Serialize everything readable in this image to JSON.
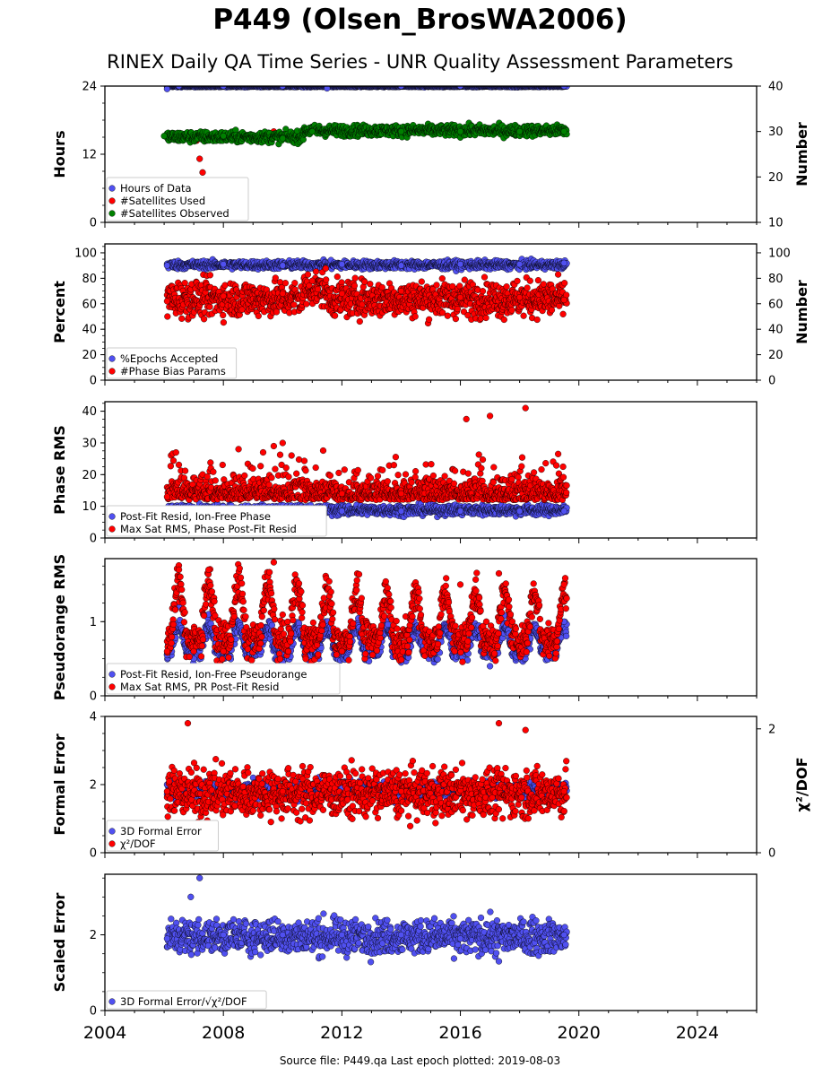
{
  "title": "P449 (Olsen_BrosWA2006)",
  "subtitle": "RINEX Daily QA Time Series - UNR Quality Assessment Parameters",
  "footer": "Source file: P449.qa Last epoch plotted: 2019-08-03",
  "colors": {
    "blue": "#5050f0",
    "red": "#ff0000",
    "green": "#008000",
    "edge": "#000000"
  },
  "chart_data": [
    {
      "type": "scatter",
      "id": "hours",
      "ylabel": "Hours",
      "y2label": "Number",
      "ylim": [
        0,
        24
      ],
      "yticks": [
        "0",
        "12",
        "24"
      ],
      "y2lim": [
        10,
        40
      ],
      "y2ticks": [
        "10",
        "20",
        "30",
        "40"
      ],
      "legend": "lower-left",
      "series": [
        {
          "name": "Hours of Data",
          "color": "blue",
          "axis": "left",
          "values": [
            [
              2006.1,
              23.5
            ],
            [
              2006.5,
              24
            ],
            [
              2008.0,
              24
            ],
            [
              2010.0,
              24
            ],
            [
              2011.5,
              23.6
            ],
            [
              2014.0,
              24
            ],
            [
              2016.0,
              24
            ],
            [
              2019.5,
              24
            ]
          ]
        },
        {
          "name": "#Satellites Used",
          "color": "red",
          "axis": "right",
          "values": [
            [
              2007.2,
              24
            ],
            [
              2007.1,
              28
            ],
            [
              2009.7,
              30
            ],
            [
              2007.3,
              21
            ]
          ]
        },
        {
          "name": "#Satellites Observed",
          "color": "green",
          "axis": "right",
          "values": [
            [
              2006.0,
              29
            ],
            [
              2008.0,
              29
            ],
            [
              2010.0,
              28.5
            ],
            [
              2011.0,
              30
            ],
            [
              2014.0,
              30
            ],
            [
              2016.0,
              30
            ],
            [
              2018.0,
              30
            ],
            [
              2019.5,
              30
            ]
          ]
        }
      ]
    },
    {
      "type": "scatter",
      "id": "percent",
      "ylabel": "Percent",
      "y2label": "Number",
      "ylim": [
        0,
        107
      ],
      "yticks": [
        "0",
        "20",
        "40",
        "60",
        "80",
        "100"
      ],
      "y2lim": [
        0,
        107
      ],
      "y2ticks": [
        "0",
        "20",
        "40",
        "60",
        "80",
        "100"
      ],
      "legend": "lower-left",
      "series": [
        {
          "name": "%Epochs Accepted",
          "color": "blue",
          "values": [
            [
              2006.1,
              90
            ],
            [
              2008.0,
              91
            ],
            [
              2010.0,
              90
            ],
            [
              2012.0,
              91
            ],
            [
              2014.0,
              90
            ],
            [
              2016.0,
              91
            ],
            [
              2018.0,
              91
            ],
            [
              2019.5,
              92
            ]
          ]
        },
        {
          "name": "#Phase Bias Params",
          "color": "red",
          "values": [
            [
              2006.1,
              62
            ],
            [
              2007.2,
              23
            ],
            [
              2008.0,
              66
            ],
            [
              2010.0,
              68
            ],
            [
              2011.0,
              78
            ],
            [
              2012.0,
              68
            ],
            [
              2014.0,
              70
            ],
            [
              2016.0,
              65
            ],
            [
              2018.0,
              65
            ],
            [
              2019.5,
              63
            ]
          ]
        }
      ]
    },
    {
      "type": "scatter",
      "id": "phase",
      "ylabel": "Phase RMS",
      "ylim": [
        0,
        43
      ],
      "yticks": [
        "0",
        "10",
        "20",
        "30",
        "40"
      ],
      "legend": "lower-left",
      "series": [
        {
          "name": "Post-Fit Resid, Ion-Free Phase",
          "color": "blue",
          "values": [
            [
              2006.1,
              9
            ],
            [
              2008.0,
              8.5
            ],
            [
              2010.0,
              8.5
            ],
            [
              2012.0,
              8.5
            ],
            [
              2014.0,
              8.5
            ],
            [
              2016.0,
              8.5
            ],
            [
              2018.0,
              8.5
            ],
            [
              2019.5,
              8.5
            ]
          ]
        },
        {
          "name": "Max Sat RMS, Phase Post-Fit Resid",
          "color": "red",
          "values": [
            [
              2006.1,
              13
            ],
            [
              2006.4,
              27
            ],
            [
              2009.7,
              29
            ],
            [
              2010.0,
              30
            ],
            [
              2012.0,
              14
            ],
            [
              2014.0,
              14
            ],
            [
              2016.2,
              37.5
            ],
            [
              2017.0,
              38.5
            ],
            [
              2018.2,
              41
            ],
            [
              2019.3,
              26.5
            ]
          ]
        }
      ]
    },
    {
      "type": "scatter",
      "id": "pseudorange",
      "ylabel": "Pseudorange RMS",
      "ylim": [
        0,
        1.85
      ],
      "yticks": [
        "0",
        "1"
      ],
      "legend": "lower-left",
      "series": [
        {
          "name": "Post-Fit Resid, Ion-Free Pseudorange",
          "color": "blue",
          "values": [
            [
              2006.1,
              0.55
            ],
            [
              2006.5,
              1.2
            ],
            [
              2007.0,
              0.5
            ],
            [
              2007.5,
              1.1
            ],
            [
              2008.0,
              0.5
            ],
            [
              2010.0,
              0.45
            ],
            [
              2014.0,
              0.45
            ],
            [
              2017.0,
              0.4
            ],
            [
              2019.5,
              1.0
            ]
          ]
        },
        {
          "name": "Max Sat RMS, PR Post-Fit Resid",
          "color": "red",
          "values": [
            [
              2006.1,
              0.6
            ],
            [
              2006.5,
              1.7
            ],
            [
              2007.0,
              0.6
            ],
            [
              2007.5,
              1.7
            ],
            [
              2008.0,
              0.6
            ],
            [
              2009.7,
              1.8
            ],
            [
              2012.0,
              0.6
            ],
            [
              2016.0,
              1.5
            ],
            [
              2017.3,
              1.65
            ],
            [
              2019.5,
              1.5
            ]
          ]
        }
      ]
    },
    {
      "type": "scatter",
      "id": "formal",
      "ylabel": "Formal Error",
      "y2label": "χ²/DOF",
      "ylim": [
        0,
        4
      ],
      "yticks": [
        "0",
        "2",
        "4"
      ],
      "y2lim": [
        0,
        2.2
      ],
      "y2ticks": [
        "0",
        "2"
      ],
      "legend": "lower-left",
      "series": [
        {
          "name": "3D Formal Error",
          "color": "blue",
          "values": [
            [
              2006.1,
              2.0
            ],
            [
              2008.0,
              1.9
            ],
            [
              2012.0,
              1.9
            ],
            [
              2016.0,
              1.9
            ],
            [
              2019.5,
              2.0
            ]
          ]
        },
        {
          "name": "χ²/DOF",
          "color": "red",
          "values": [
            [
              2006.1,
              1.8
            ],
            [
              2006.8,
              3.8
            ],
            [
              2010.0,
              1.8
            ],
            [
              2014.0,
              1.8
            ],
            [
              2017.3,
              3.8
            ],
            [
              2018.2,
              3.6
            ],
            [
              2019.5,
              1.8
            ]
          ]
        }
      ]
    },
    {
      "type": "scatter",
      "id": "scaled",
      "ylabel": "Scaled Error",
      "ylim": [
        0,
        3.6
      ],
      "yticks": [
        "0",
        "2"
      ],
      "legend": "lower-left",
      "xlim": [
        2004,
        2026
      ],
      "xticks": [
        "2004",
        "2008",
        "2012",
        "2016",
        "2020",
        "2024"
      ],
      "series": [
        {
          "name": "3D Formal Error/√χ²/DOF",
          "color": "blue",
          "values": [
            [
              2006.1,
              1.9
            ],
            [
              2006.9,
              3.0
            ],
            [
              2007.2,
              3.5
            ],
            [
              2008.0,
              2.0
            ],
            [
              2010.0,
              2.0
            ],
            [
              2012.0,
              2.0
            ],
            [
              2014.0,
              2.0
            ],
            [
              2016.0,
              1.9
            ],
            [
              2017.3,
              1.3
            ],
            [
              2019.5,
              2.0
            ]
          ]
        }
      ]
    }
  ]
}
